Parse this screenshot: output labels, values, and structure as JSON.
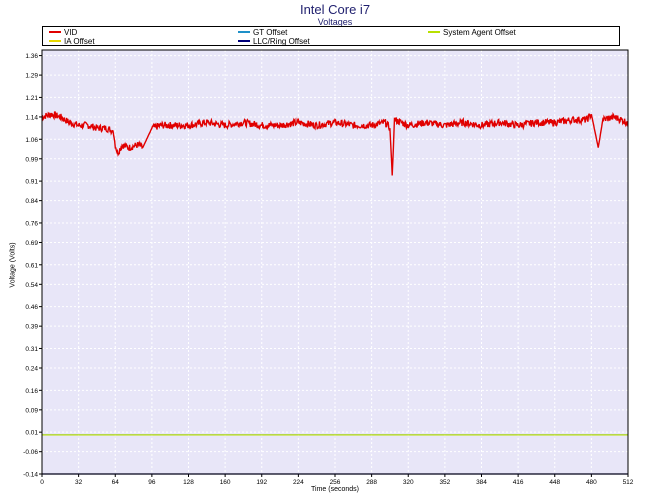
{
  "chart_data": {
    "type": "line",
    "title": "Intel Core i7",
    "subtitle": "Voltages",
    "xlabel": "Time (seconds)",
    "ylabel": "Voltage (Volts)",
    "xlim": [
      0,
      512
    ],
    "ylim": [
      -0.14,
      1.38
    ],
    "x_ticks": [
      0,
      32,
      64,
      96,
      128,
      160,
      192,
      224,
      256,
      288,
      320,
      352,
      384,
      416,
      448,
      480,
      512
    ],
    "y_ticks": [
      "1.36",
      "1.29",
      "1.21",
      "1.14",
      "1.06",
      "0.99",
      "0.91",
      "0.84",
      "0.76",
      "0.69",
      "0.61",
      "0.54",
      "0.46",
      "0.39",
      "0.31",
      "0.24",
      "0.16",
      "0.09",
      "0.01",
      "-0.06",
      "-0.14"
    ],
    "plot_background": "#e8e6f8",
    "grid": true,
    "legend": {
      "position": "top",
      "entries": [
        {
          "name": "VID",
          "color": "#e00000"
        },
        {
          "name": "GT Offset",
          "color": "#1e90c8"
        },
        {
          "name": "System Agent Offset",
          "color": "#b8e000"
        },
        {
          "name": "IA Offset",
          "color": "#e8d800"
        },
        {
          "name": "LLC/Ring Offset",
          "color": "#00007a"
        }
      ]
    },
    "series": [
      {
        "name": "VID",
        "color": "#e00000",
        "x": [
          0,
          8,
          16,
          24,
          32,
          40,
          48,
          56,
          62,
          64,
          66,
          70,
          76,
          84,
          88,
          96,
          104,
          112,
          128,
          144,
          160,
          176,
          192,
          208,
          224,
          240,
          256,
          272,
          288,
          300,
          304,
          306,
          308,
          320,
          336,
          352,
          368,
          384,
          400,
          416,
          432,
          448,
          464,
          476,
          480,
          486,
          490,
          500,
          512
        ],
        "y": [
          1.14,
          1.15,
          1.14,
          1.12,
          1.11,
          1.11,
          1.1,
          1.1,
          1.09,
          1.04,
          1.01,
          1.04,
          1.03,
          1.04,
          1.03,
          1.1,
          1.11,
          1.11,
          1.11,
          1.12,
          1.11,
          1.12,
          1.11,
          1.11,
          1.12,
          1.11,
          1.12,
          1.11,
          1.11,
          1.12,
          1.1,
          0.93,
          1.13,
          1.11,
          1.12,
          1.11,
          1.12,
          1.11,
          1.12,
          1.11,
          1.12,
          1.12,
          1.13,
          1.13,
          1.15,
          1.03,
          1.13,
          1.14,
          1.12
        ]
      },
      {
        "name": "GT Offset",
        "color": "#1e90c8",
        "x": [
          0,
          512
        ],
        "y": [
          0,
          0
        ]
      },
      {
        "name": "System Agent Offset",
        "color": "#b8e000",
        "x": [
          0,
          512
        ],
        "y": [
          0,
          0
        ]
      },
      {
        "name": "IA Offset",
        "color": "#e8d800",
        "x": [
          0,
          512
        ],
        "y": [
          0,
          0
        ]
      },
      {
        "name": "LLC/Ring Offset",
        "color": "#00007a",
        "x": [
          0,
          512
        ],
        "y": [
          -0.14,
          -0.14
        ]
      }
    ]
  }
}
